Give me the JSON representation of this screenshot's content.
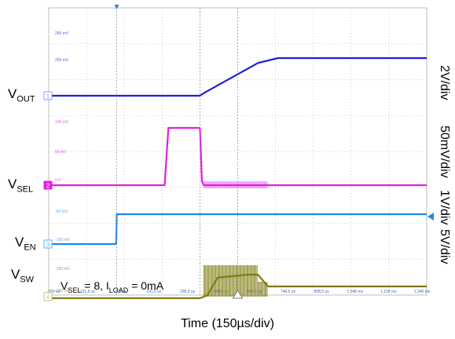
{
  "chart_data": {
    "type": "line",
    "xlabel": "Time (150µs/div)",
    "annotation": {
      "pre": "V",
      "sub1": "SEL",
      "mid": " = 8, I",
      "sub2": "LOAD",
      "post": " = 0mA"
    },
    "grid": true,
    "background": "#ffffff",
    "grid_color": "#bfbfbf",
    "x": {
      "unit": "µs",
      "per_division": 150,
      "divisions": 10,
      "range": [
        -270,
        1230
      ],
      "tick_labels": [
        "-200 us",
        "-151,5 us",
        "-1,5 us",
        "141,5 us",
        "298,5 us",
        "448,5 us",
        "598,5 us",
        "748,5 us",
        "898,5 us",
        "1,048 ms",
        "1,198 ms",
        "1,348 ms"
      ]
    },
    "series": [
      {
        "name": "VOUT",
        "base": "V",
        "sub": "OUT",
        "color": "#1f1fd6",
        "scale": "2V/div",
        "marker": "1",
        "marker_color": "#9a9aff",
        "level_labels": [
          "250 mV",
          "200 mV"
        ],
        "points": [
          [
            -270,
            0
          ],
          [
            330,
            0
          ],
          [
            350,
            0.4
          ],
          [
            560,
            4.0
          ],
          [
            640,
            4.6
          ],
          [
            1230,
            4.6
          ]
        ]
      },
      {
        "name": "VSEL",
        "base": "V",
        "sub": "SEL",
        "color": "#e020e0",
        "scale": "50mV/div",
        "marker": "2",
        "marker_color": "#e020e0",
        "level_labels": [
          "100 mV",
          "50 mV",
          "0.0"
        ],
        "points": [
          [
            -270,
            0
          ],
          [
            190,
            0
          ],
          [
            205,
            150
          ],
          [
            330,
            150
          ],
          [
            338,
            10
          ],
          [
            345,
            0
          ],
          [
            1230,
            0
          ]
        ]
      },
      {
        "name": "VEN",
        "base": "V",
        "sub": "EN",
        "color": "#1e88e5",
        "scale": "1V/div",
        "marker": "3",
        "marker_color": "#5fb0ff",
        "level_labels": [
          "-50 mV",
          "-100 mV"
        ],
        "points": [
          [
            -270,
            0
          ],
          [
            -2,
            0
          ],
          [
            0,
            3.3
          ],
          [
            1230,
            3.3
          ]
        ]
      },
      {
        "name": "VSW",
        "base": "V",
        "sub": "SW",
        "color": "#807a10",
        "scale": "5V/div",
        "marker": "4",
        "marker_color": "#c8c27a",
        "level_labels": [
          "-150 mV",
          "-200 mV"
        ],
        "points": [
          [
            -270,
            0
          ],
          [
            330,
            0
          ],
          [
            360,
            1
          ],
          [
            400,
            7
          ],
          [
            520,
            8
          ],
          [
            560,
            8
          ],
          [
            600,
            4
          ],
          [
            1230,
            4
          ]
        ]
      }
    ]
  }
}
